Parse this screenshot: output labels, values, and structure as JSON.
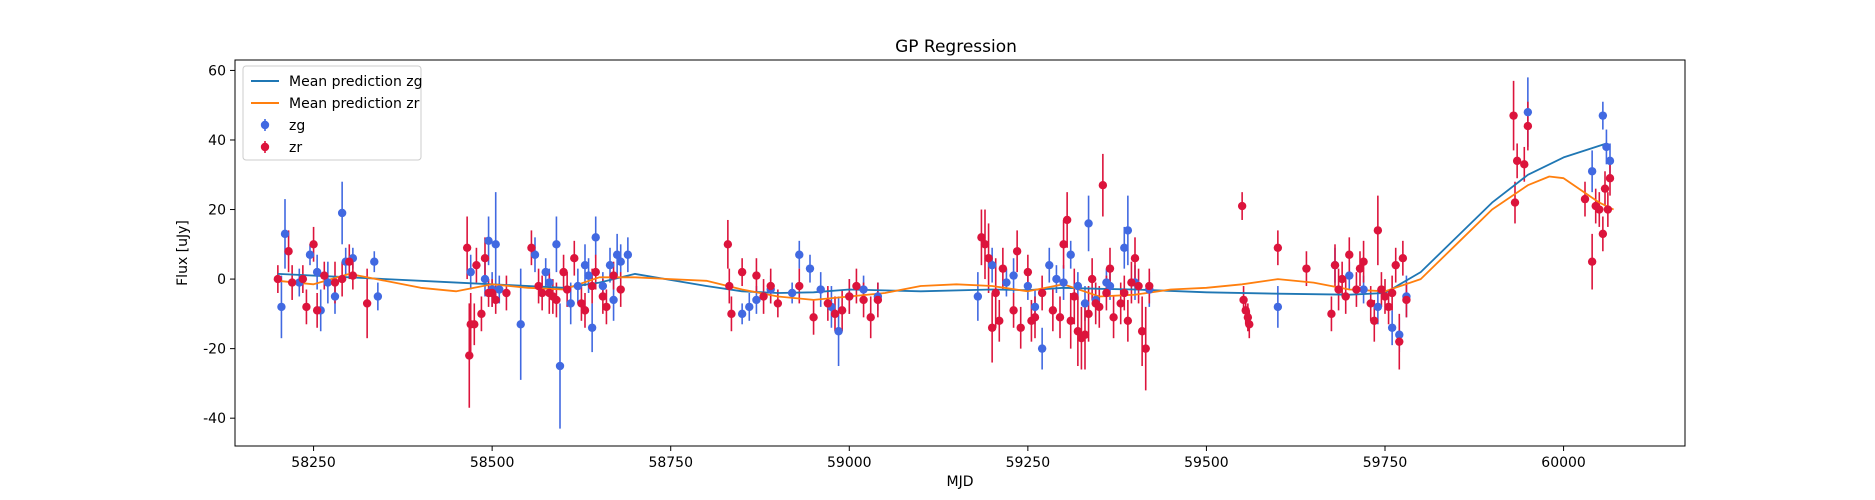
{
  "chart_data": {
    "type": "scatter",
    "title": "GP Regression",
    "xlabel": "MJD",
    "ylabel": "Flux [uJy]",
    "xlim": [
      58140,
      60170
    ],
    "ylim": [
      -48,
      63
    ],
    "xticks": [
      58250,
      58500,
      58750,
      59000,
      59250,
      59500,
      59750,
      60000
    ],
    "yticks": [
      -40,
      -20,
      0,
      20,
      40,
      60
    ],
    "grid": false,
    "legend_position": "top-left",
    "lines": [
      {
        "name": "Mean prediction zg",
        "color": "#1f77b4",
        "x": [
          58200,
          58300,
          58400,
          58500,
          58600,
          58650,
          58700,
          58800,
          58850,
          58900,
          58950,
          59000,
          59100,
          59200,
          59250,
          59300,
          59350,
          59400,
          59500,
          59600,
          59700,
          59750,
          59800,
          59850,
          59900,
          59950,
          60000,
          60060
        ],
        "y": [
          1.5,
          0.5,
          -0.5,
          -1.5,
          -2.5,
          -1,
          1.5,
          -2,
          -3.5,
          -4,
          -3.8,
          -3,
          -3.5,
          -3,
          -3.2,
          -2.5,
          -2.8,
          -3,
          -3.8,
          -4.2,
          -4.5,
          -4,
          2,
          12,
          22,
          30,
          35,
          39
        ]
      },
      {
        "name": "Mean prediction zr",
        "color": "#ff7f0e",
        "x": [
          58200,
          58250,
          58300,
          58350,
          58400,
          58450,
          58500,
          58550,
          58600,
          58650,
          58700,
          58750,
          58800,
          58850,
          58900,
          58950,
          59000,
          59050,
          59100,
          59150,
          59200,
          59250,
          59300,
          59350,
          59400,
          59450,
          59500,
          59550,
          59600,
          59650,
          59700,
          59750,
          59800,
          59850,
          59900,
          59950,
          59980,
          60000,
          60050,
          60070
        ],
        "y": [
          -0.5,
          -1.5,
          1.5,
          -0.5,
          -2.5,
          -3.5,
          -1.5,
          -2.5,
          -3,
          0.5,
          0.5,
          0,
          -0.5,
          -3,
          -5,
          -6,
          -5,
          -4,
          -2,
          -1.5,
          -2,
          -3.5,
          -1.5,
          -5,
          -4.5,
          -3,
          -2.5,
          -1.5,
          0,
          -1,
          -3,
          -3.5,
          0,
          10,
          20,
          27,
          29.5,
          29,
          22,
          20
        ]
      }
    ],
    "series": [
      {
        "name": "zg",
        "color": "#4169e1",
        "marker": "circle",
        "points": [
          [
            58205,
            -8,
            9
          ],
          [
            58210,
            13,
            10
          ],
          [
            58230,
            -1,
            4
          ],
          [
            58245,
            7,
            3
          ],
          [
            58255,
            2,
            5
          ],
          [
            58260,
            -9,
            6
          ],
          [
            58270,
            -1,
            6
          ],
          [
            58280,
            -5,
            5
          ],
          [
            58290,
            19,
            9
          ],
          [
            58295,
            5,
            4
          ],
          [
            58305,
            6,
            3
          ],
          [
            58335,
            5,
            3
          ],
          [
            58340,
            -5,
            4
          ],
          [
            58470,
            2,
            5
          ],
          [
            58490,
            0,
            5
          ],
          [
            58495,
            11,
            7
          ],
          [
            58500,
            -3,
            5
          ],
          [
            58505,
            10,
            15
          ],
          [
            58510,
            -3,
            4
          ],
          [
            58540,
            -13,
            16
          ],
          [
            58560,
            7,
            5
          ],
          [
            58575,
            2,
            4
          ],
          [
            58580,
            -1,
            4
          ],
          [
            58590,
            10,
            8
          ],
          [
            58595,
            -25,
            18
          ],
          [
            58610,
            -7,
            6
          ],
          [
            58620,
            -2,
            5
          ],
          [
            58630,
            4,
            6
          ],
          [
            58635,
            1,
            5
          ],
          [
            58640,
            -14,
            7
          ],
          [
            58645,
            12,
            6
          ],
          [
            58655,
            -2,
            4
          ],
          [
            58665,
            4,
            5
          ],
          [
            58670,
            -6,
            6
          ],
          [
            58675,
            7,
            6
          ],
          [
            58680,
            5,
            5
          ],
          [
            58690,
            7,
            5
          ],
          [
            58850,
            -10,
            3
          ],
          [
            58860,
            -8,
            4
          ],
          [
            58870,
            -6,
            4
          ],
          [
            58890,
            -3,
            4
          ],
          [
            58920,
            -4,
            3
          ],
          [
            58930,
            7,
            4
          ],
          [
            58945,
            3,
            4
          ],
          [
            58960,
            -3,
            5
          ],
          [
            58975,
            -8,
            6
          ],
          [
            58985,
            -15,
            10
          ],
          [
            59000,
            -5,
            5
          ],
          [
            59020,
            -3,
            4
          ],
          [
            59040,
            -5,
            4
          ],
          [
            59180,
            -5,
            7
          ],
          [
            59200,
            4,
            5
          ],
          [
            59220,
            -1,
            4
          ],
          [
            59230,
            1,
            5
          ],
          [
            59250,
            -2,
            4
          ],
          [
            59260,
            -8,
            5
          ],
          [
            59270,
            -20,
            6
          ],
          [
            59280,
            4,
            5
          ],
          [
            59290,
            0,
            4
          ],
          [
            59300,
            -1,
            5
          ],
          [
            59310,
            7,
            4
          ],
          [
            59320,
            -2,
            4
          ],
          [
            59330,
            -7,
            5
          ],
          [
            59335,
            16,
            8
          ],
          [
            59345,
            -6,
            5
          ],
          [
            59360,
            -1,
            4
          ],
          [
            59365,
            -2,
            4
          ],
          [
            59385,
            9,
            6
          ],
          [
            59390,
            14,
            10
          ],
          [
            59400,
            -1,
            5
          ],
          [
            59420,
            -3,
            5
          ],
          [
            59600,
            -8,
            6
          ],
          [
            59680,
            4,
            5
          ],
          [
            59700,
            1,
            4
          ],
          [
            59720,
            -3,
            4
          ],
          [
            59740,
            -8,
            5
          ],
          [
            59760,
            -14,
            5
          ],
          [
            59770,
            -16,
            5
          ],
          [
            59780,
            -5,
            6
          ],
          [
            59950,
            48,
            10
          ],
          [
            60040,
            31,
            6
          ],
          [
            60055,
            47,
            4
          ],
          [
            60060,
            38,
            5
          ],
          [
            60065,
            34,
            5
          ]
        ]
      },
      {
        "name": "zr",
        "color": "#dc143c",
        "marker": "circle",
        "points": [
          [
            58200,
            0,
            4
          ],
          [
            58215,
            8,
            6
          ],
          [
            58220,
            -1,
            5
          ],
          [
            58235,
            0,
            4
          ],
          [
            58240,
            -8,
            5
          ],
          [
            58250,
            10,
            5
          ],
          [
            58255,
            -9,
            5
          ],
          [
            58265,
            1,
            4
          ],
          [
            58280,
            -1,
            6
          ],
          [
            58290,
            0,
            5
          ],
          [
            58300,
            5,
            5
          ],
          [
            58305,
            1,
            4
          ],
          [
            58325,
            -7,
            10
          ],
          [
            58465,
            9,
            9
          ],
          [
            58468,
            -22,
            15
          ],
          [
            58470,
            -13,
            9
          ],
          [
            58475,
            -13,
            6
          ],
          [
            58478,
            4,
            5
          ],
          [
            58485,
            -10,
            5
          ],
          [
            58490,
            6,
            6
          ],
          [
            58495,
            -4,
            4
          ],
          [
            58500,
            -4,
            4
          ],
          [
            58505,
            -6,
            4
          ],
          [
            58520,
            -4,
            5
          ],
          [
            58555,
            9,
            5
          ],
          [
            58565,
            -2,
            5
          ],
          [
            58570,
            -4,
            5
          ],
          [
            58580,
            -4,
            6
          ],
          [
            58585,
            -5,
            5
          ],
          [
            58590,
            -6,
            5
          ],
          [
            58600,
            2,
            5
          ],
          [
            58605,
            -3,
            5
          ],
          [
            58615,
            6,
            5
          ],
          [
            58625,
            -7,
            5
          ],
          [
            58630,
            -9,
            5
          ],
          [
            58640,
            -2,
            5
          ],
          [
            58645,
            2,
            5
          ],
          [
            58655,
            -5,
            5
          ],
          [
            58660,
            -8,
            5
          ],
          [
            58670,
            1,
            4
          ],
          [
            58680,
            -3,
            5
          ],
          [
            58830,
            10,
            7
          ],
          [
            58832,
            -2,
            5
          ],
          [
            58835,
            -10,
            5
          ],
          [
            58850,
            2,
            4
          ],
          [
            58870,
            1,
            5
          ],
          [
            58880,
            -5,
            5
          ],
          [
            58890,
            -2,
            5
          ],
          [
            58900,
            -7,
            4
          ],
          [
            58930,
            -2,
            5
          ],
          [
            58950,
            -11,
            5
          ],
          [
            58970,
            -7,
            5
          ],
          [
            58980,
            -10,
            5
          ],
          [
            58990,
            -9,
            6
          ],
          [
            59000,
            -5,
            5
          ],
          [
            59010,
            -2,
            5
          ],
          [
            59020,
            -6,
            5
          ],
          [
            59030,
            -11,
            6
          ],
          [
            59040,
            -6,
            5
          ],
          [
            59185,
            12,
            8
          ],
          [
            59190,
            10,
            10
          ],
          [
            59195,
            6,
            10
          ],
          [
            59200,
            -14,
            10
          ],
          [
            59205,
            -4,
            10
          ],
          [
            59210,
            -12,
            6
          ],
          [
            59215,
            3,
            6
          ],
          [
            59230,
            -9,
            5
          ],
          [
            59235,
            8,
            6
          ],
          [
            59240,
            -14,
            6
          ],
          [
            59250,
            2,
            5
          ],
          [
            59255,
            -12,
            6
          ],
          [
            59260,
            -11,
            6
          ],
          [
            59270,
            -4,
            5
          ],
          [
            59285,
            -9,
            6
          ],
          [
            59295,
            -11,
            6
          ],
          [
            59300,
            10,
            7
          ],
          [
            59305,
            17,
            8
          ],
          [
            59310,
            -12,
            8
          ],
          [
            59315,
            -5,
            8
          ],
          [
            59320,
            -15,
            10
          ],
          [
            59325,
            -17,
            9
          ],
          [
            59330,
            -16,
            10
          ],
          [
            59335,
            -10,
            8
          ],
          [
            59340,
            0,
            6
          ],
          [
            59345,
            -7,
            6
          ],
          [
            59350,
            -8,
            6
          ],
          [
            59355,
            27,
            9
          ],
          [
            59360,
            -4,
            5
          ],
          [
            59365,
            3,
            6
          ],
          [
            59370,
            -11,
            6
          ],
          [
            59380,
            -7,
            6
          ],
          [
            59385,
            -4,
            5
          ],
          [
            59390,
            -12,
            6
          ],
          [
            59395,
            -1,
            6
          ],
          [
            59400,
            6,
            6
          ],
          [
            59405,
            -2,
            5
          ],
          [
            59410,
            -15,
            10
          ],
          [
            59415,
            -20,
            12
          ],
          [
            59420,
            -2,
            5
          ],
          [
            59550,
            21,
            4
          ],
          [
            59552,
            -6,
            4
          ],
          [
            59555,
            -9,
            4
          ],
          [
            59558,
            -11,
            4
          ],
          [
            59560,
            -13,
            4
          ],
          [
            59600,
            9,
            5
          ],
          [
            59640,
            3,
            5
          ],
          [
            59675,
            -10,
            5
          ],
          [
            59680,
            4,
            6
          ],
          [
            59685,
            -3,
            6
          ],
          [
            59690,
            0,
            5
          ],
          [
            59695,
            -5,
            5
          ],
          [
            59700,
            7,
            5
          ],
          [
            59710,
            -3,
            5
          ],
          [
            59715,
            3,
            5
          ],
          [
            59720,
            5,
            6
          ],
          [
            59730,
            -7,
            5
          ],
          [
            59735,
            -12,
            6
          ],
          [
            59740,
            14,
            10
          ],
          [
            59745,
            -3,
            5
          ],
          [
            59750,
            -5,
            5
          ],
          [
            59755,
            -8,
            5
          ],
          [
            59760,
            -4,
            5
          ],
          [
            59765,
            4,
            5
          ],
          [
            59770,
            -18,
            8
          ],
          [
            59775,
            6,
            5
          ],
          [
            59780,
            -6,
            5
          ],
          [
            59930,
            47,
            10
          ],
          [
            59932,
            22,
            6
          ],
          [
            59935,
            34,
            5
          ],
          [
            59945,
            33,
            5
          ],
          [
            59950,
            44,
            7
          ],
          [
            60030,
            23,
            5
          ],
          [
            60040,
            5,
            8
          ],
          [
            60045,
            21,
            5
          ],
          [
            60050,
            20,
            5
          ],
          [
            60055,
            13,
            5
          ],
          [
            60058,
            26,
            5
          ],
          [
            60062,
            20,
            5
          ],
          [
            60065,
            29,
            5
          ]
        ]
      }
    ]
  }
}
